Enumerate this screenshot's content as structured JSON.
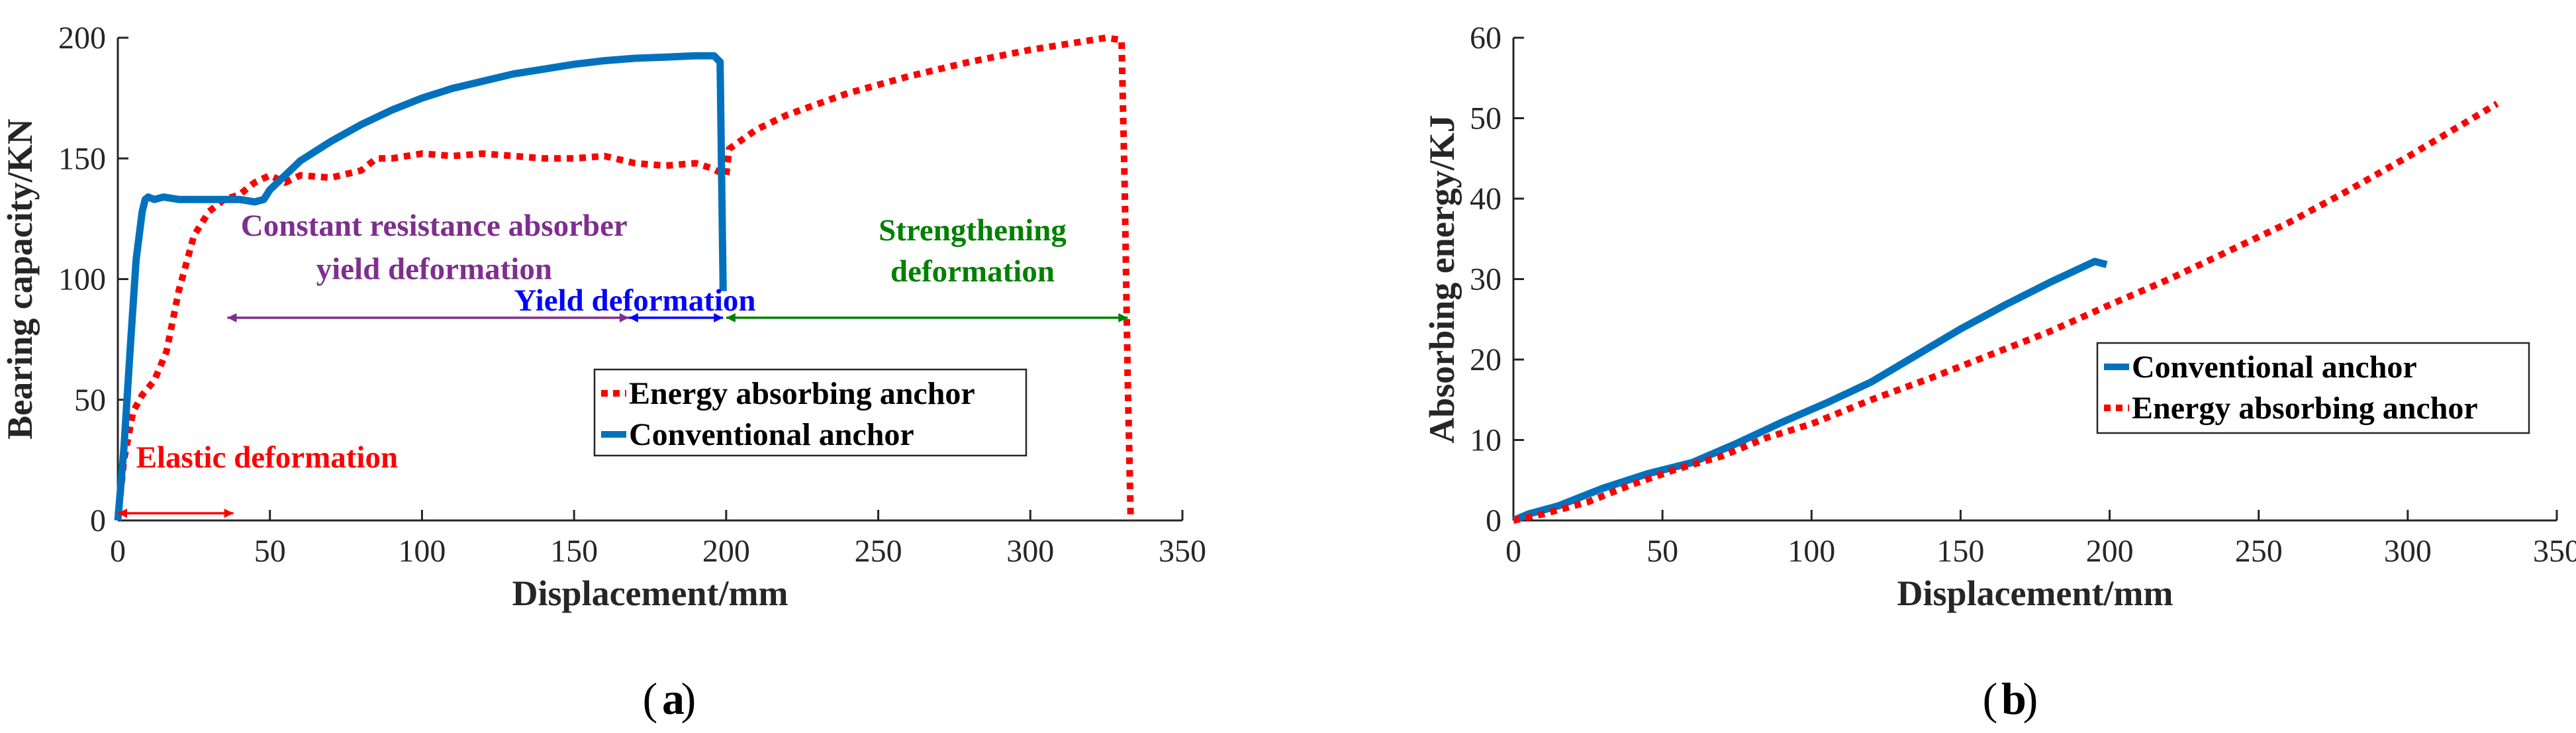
{
  "colors": {
    "conventional": "#0072BD",
    "energy": "#FF0000",
    "purple": "#7E2F8E",
    "blue_annot": "#0000FF",
    "green_annot": "#008000",
    "axis": "#262626"
  },
  "chart_data": [
    {
      "type": "line",
      "panel": "a",
      "xlabel": "Displacement/mm",
      "ylabel": "Bearing capacity/KN",
      "xlim": [
        0,
        350
      ],
      "ylim": [
        0,
        200
      ],
      "xticks": [
        0,
        50,
        100,
        150,
        200,
        250,
        300,
        350
      ],
      "yticks": [
        0,
        50,
        100,
        150,
        200
      ],
      "grid": false,
      "legend_position": "center-right",
      "series": [
        {
          "name": "Energy absorbing anchor",
          "style": "dotted",
          "x": [
            0,
            2,
            5,
            8,
            12,
            16,
            20,
            25,
            30,
            35,
            40,
            45,
            50,
            55,
            60,
            70,
            80,
            85,
            90,
            100,
            110,
            120,
            130,
            140,
            150,
            160,
            170,
            180,
            190,
            195,
            200,
            201,
            210,
            220,
            240,
            260,
            280,
            300,
            315,
            325,
            330,
            331,
            332,
            333
          ],
          "y": [
            0,
            25,
            45,
            52,
            58,
            70,
            95,
            118,
            128,
            133,
            135,
            140,
            143,
            140,
            143,
            142,
            145,
            150,
            150,
            152,
            151,
            152,
            151,
            150,
            150,
            151,
            148,
            147,
            148,
            146,
            143,
            154,
            162,
            168,
            177,
            184,
            190,
            195,
            198,
            200,
            199,
            140,
            60,
            0
          ]
        },
        {
          "name": "Conventional anchor",
          "style": "solid",
          "x": [
            0,
            2,
            4,
            6,
            8,
            9,
            10,
            12,
            15,
            20,
            25,
            30,
            35,
            40,
            45,
            48,
            50,
            55,
            60,
            70,
            80,
            90,
            100,
            110,
            120,
            130,
            140,
            150,
            160,
            170,
            180,
            190,
            196,
            198,
            199
          ],
          "y": [
            0,
            30,
            70,
            108,
            128,
            133,
            134,
            133,
            134,
            133,
            133,
            133,
            133,
            133,
            132,
            133,
            137,
            143,
            149,
            157,
            164,
            170,
            175,
            179,
            182,
            185,
            187,
            189,
            190.5,
            191.5,
            192,
            192.5,
            192.5,
            190,
            95
          ]
        }
      ],
      "annotations": {
        "elastic": "Elastic deformation",
        "constant_line1": "Constant resistance absorber",
        "constant_line2": "yield deformation",
        "yield": "Yield deformation",
        "strengthening_line1": "Strengthening",
        "strengthening_line2": "deformation"
      },
      "ranges": {
        "elastic": [
          0,
          38
        ],
        "constant": [
          36,
          168
        ],
        "yield": [
          168,
          199
        ],
        "strengthening": [
          200,
          332
        ]
      },
      "panel_label": "a"
    },
    {
      "type": "line",
      "panel": "b",
      "xlabel": "Displacement/mm",
      "ylabel": "Absorbing energy/KJ",
      "xlim": [
        0,
        350
      ],
      "ylim": [
        0,
        60
      ],
      "xticks": [
        0,
        50,
        100,
        150,
        200,
        250,
        300,
        350
      ],
      "yticks": [
        0,
        10,
        20,
        30,
        40,
        50,
        60
      ],
      "grid": false,
      "legend_position": "center-right",
      "series": [
        {
          "name": "Conventional anchor",
          "style": "solid",
          "x": [
            0,
            5,
            15,
            30,
            45,
            60,
            75,
            90,
            105,
            120,
            135,
            150,
            165,
            180,
            195,
            199
          ],
          "y": [
            0,
            0.8,
            1.8,
            4,
            5.8,
            7.2,
            9.6,
            12.2,
            14.6,
            17.2,
            20.5,
            23.8,
            26.8,
            29.6,
            32.2,
            31.8
          ]
        },
        {
          "name": "Energy absorbing anchor",
          "style": "dotted",
          "x": [
            0,
            10,
            25,
            40,
            55,
            70,
            85,
            100,
            120,
            140,
            160,
            180,
            200,
            220,
            240,
            260,
            280,
            300,
            315,
            330
          ],
          "y": [
            0,
            0.8,
            2.3,
            4.5,
            6.4,
            8,
            10.3,
            12,
            15,
            17.7,
            20.6,
            23.5,
            26.8,
            30,
            33.5,
            37,
            41,
            45.2,
            48.5,
            51.8
          ]
        }
      ],
      "panel_label": "b"
    }
  ]
}
